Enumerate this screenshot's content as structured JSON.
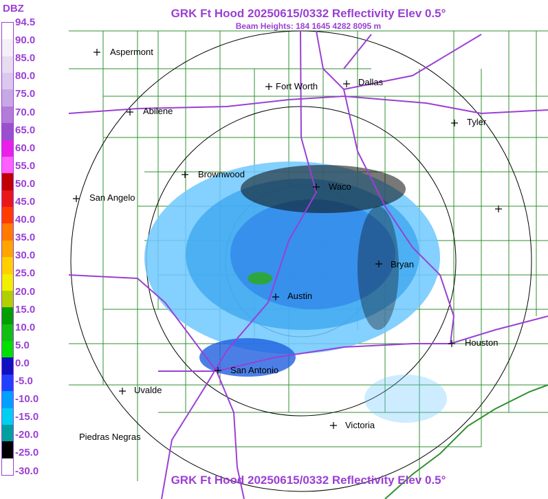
{
  "header": {
    "title": "GRK Ft Hood 20250615/0332 Reflectivity Elev 0.5°",
    "subtitle": "Beam Heights: 184 1645 4282 8095 m",
    "footer": "GRK Ft Hood 20250615/0332 Reflectivity Elev 0.5°"
  },
  "legend": {
    "title": "DBZ",
    "labels": [
      "94.5",
      "90.0",
      "85.0",
      "80.0",
      "75.0",
      "70.0",
      "65.0",
      "60.0",
      "55.0",
      "50.0",
      "45.0",
      "40.0",
      "35.0",
      "30.0",
      "25.0",
      "20.0",
      "15.0",
      "10.0",
      "5.0",
      "0.0",
      "-5.0",
      "-10.0",
      "-15.0",
      "-20.0",
      "-25.0",
      "-30.0"
    ],
    "colors": [
      "#ffffff",
      "#f4f0f8",
      "#e8dcf0",
      "#dcc8ec",
      "#c8a8e4",
      "#b07cd8",
      "#9a50cc",
      "#e820e8",
      "#ff60ff",
      "#c00000",
      "#e81818",
      "#ff3c00",
      "#ff7a00",
      "#ffa400",
      "#ffd000",
      "#f0f000",
      "#b0d000",
      "#00a000",
      "#10c010",
      "#00e000",
      "#1010c0",
      "#2040ff",
      "#00a0ff",
      "#00d0f0",
      "#00a0a0",
      "#000000",
      "#ffffff"
    ]
  },
  "map": {
    "cities": [
      {
        "name": "Aspermont"
      },
      {
        "name": "Fort Worth"
      },
      {
        "name": "Dallas"
      },
      {
        "name": "Abilene"
      },
      {
        "name": "Tyler"
      },
      {
        "name": "Brownwood"
      },
      {
        "name": "Waco"
      },
      {
        "name": "San Angelo"
      },
      {
        "name": "Bryan"
      },
      {
        "name": "Austin"
      },
      {
        "name": "Houston"
      },
      {
        "name": "San Antonio"
      },
      {
        "name": "Uvalde"
      },
      {
        "name": "Victoria"
      },
      {
        "name": "Piedras Negras"
      },
      {
        "name": ""
      }
    ]
  }
}
